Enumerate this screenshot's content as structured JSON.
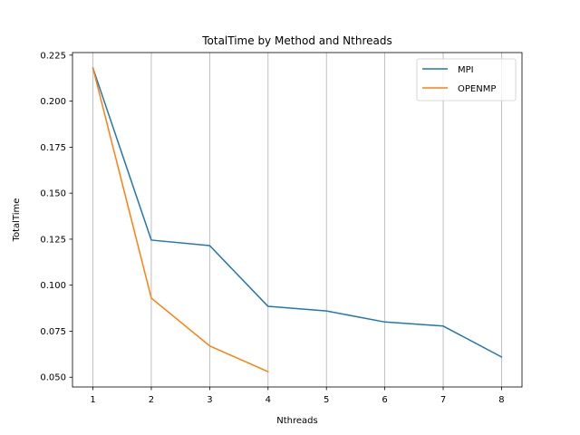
{
  "chart_data": {
    "type": "line",
    "title": "TotalTime by Method and Nthreads",
    "xlabel": "Nthreads",
    "ylabel": "TotalTime",
    "x_ticks": [
      1,
      2,
      3,
      4,
      5,
      6,
      7,
      8
    ],
    "y_ticks": [
      "0.050",
      "0.075",
      "0.100",
      "0.125",
      "0.150",
      "0.175",
      "0.200",
      "0.225"
    ],
    "xlim": [
      0.65,
      8.35
    ],
    "ylim": [
      0.0447,
      0.2264
    ],
    "grid": "vertical",
    "legend_position": "top-right",
    "series": [
      {
        "name": "MPI",
        "color": "#1f77b4",
        "x": [
          1,
          2,
          3,
          4,
          5,
          6,
          7,
          8
        ],
        "values": [
          0.218,
          0.1245,
          0.1215,
          0.0885,
          0.086,
          0.08,
          0.0778,
          0.061
        ]
      },
      {
        "name": "OPENMP",
        "color": "#ff7f0e",
        "x": [
          1,
          2,
          3,
          4
        ],
        "values": [
          0.218,
          0.093,
          0.067,
          0.053
        ]
      }
    ]
  }
}
